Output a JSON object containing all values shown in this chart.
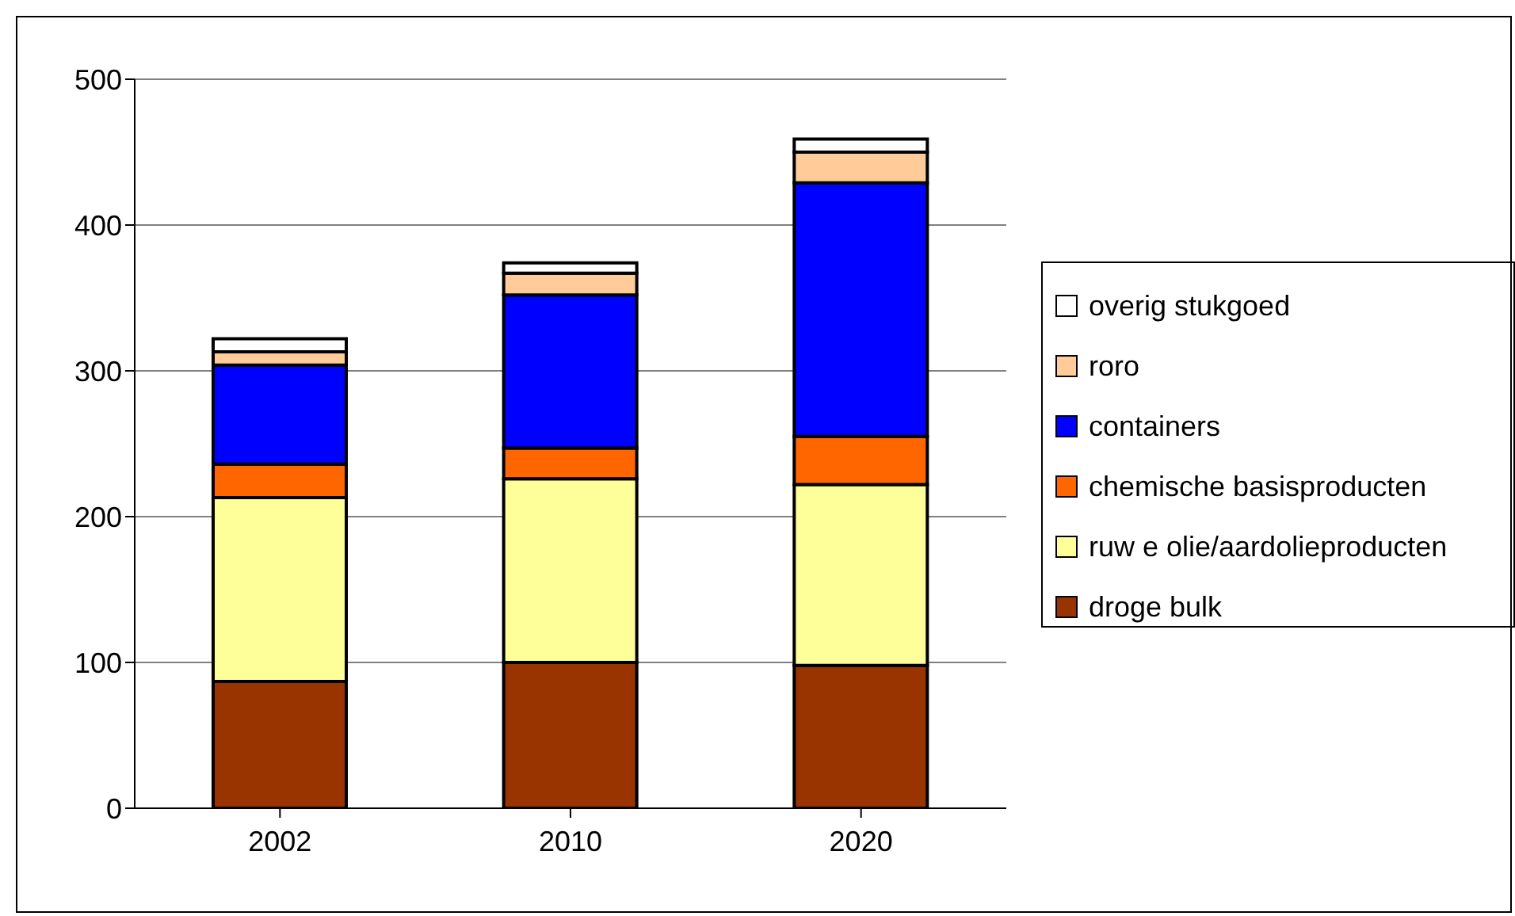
{
  "chart_data": {
    "type": "bar",
    "stacked": true,
    "categories": [
      "2002",
      "2010",
      "2020"
    ],
    "series": [
      {
        "name": "droge bulk",
        "color": "#993300",
        "values": [
          87,
          100,
          98
        ]
      },
      {
        "name": "ruw e olie/aardolieproducten",
        "color": "#ffff99",
        "values": [
          126,
          126,
          124
        ]
      },
      {
        "name": "chemische basisproducten",
        "color": "#ff6600",
        "values": [
          23,
          21,
          33
        ]
      },
      {
        "name": "containers",
        "color": "#0000ff",
        "values": [
          68,
          105,
          174
        ]
      },
      {
        "name": "roro",
        "color": "#ffcc99",
        "values": [
          9,
          15,
          21
        ]
      },
      {
        "name": "overig stukgoed",
        "color": "#ffffff",
        "values": [
          9,
          7,
          9
        ]
      }
    ],
    "ylim": [
      0,
      500
    ],
    "yticks": [
      0,
      100,
      200,
      300,
      400,
      500
    ],
    "grid": "y",
    "legend": "right"
  }
}
